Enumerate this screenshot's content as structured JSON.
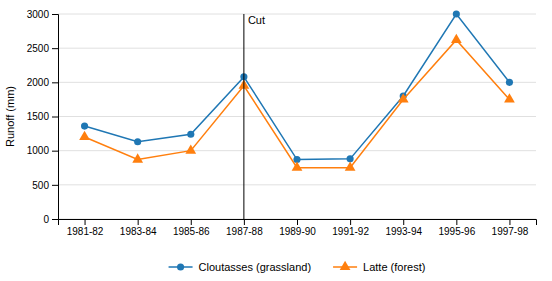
{
  "chart_data": {
    "type": "line",
    "categories": [
      "1981-82",
      "1983-84",
      "1985-86",
      "1987-88",
      "1989-90",
      "1991-92",
      "1993-94",
      "1995-96",
      "1997-98"
    ],
    "series": [
      {
        "name": "Cloutasses (grassland)",
        "marker": "circle",
        "values": [
          1360,
          1130,
          1240,
          2080,
          870,
          880,
          1800,
          3000,
          2000
        ]
      },
      {
        "name": "Latte (forest)",
        "marker": "triangle",
        "values": [
          1200,
          870,
          1000,
          1950,
          750,
          750,
          1750,
          2620,
          1750
        ]
      }
    ],
    "y_label": "Runoff (mm)",
    "ylim": [
      0,
      3000
    ],
    "yticks": [
      0,
      500,
      1000,
      1500,
      2000,
      2500,
      3000
    ],
    "annotations": [
      {
        "text": "Cut",
        "x": "1987-88"
      }
    ],
    "grid": true,
    "legend": "bottom"
  }
}
